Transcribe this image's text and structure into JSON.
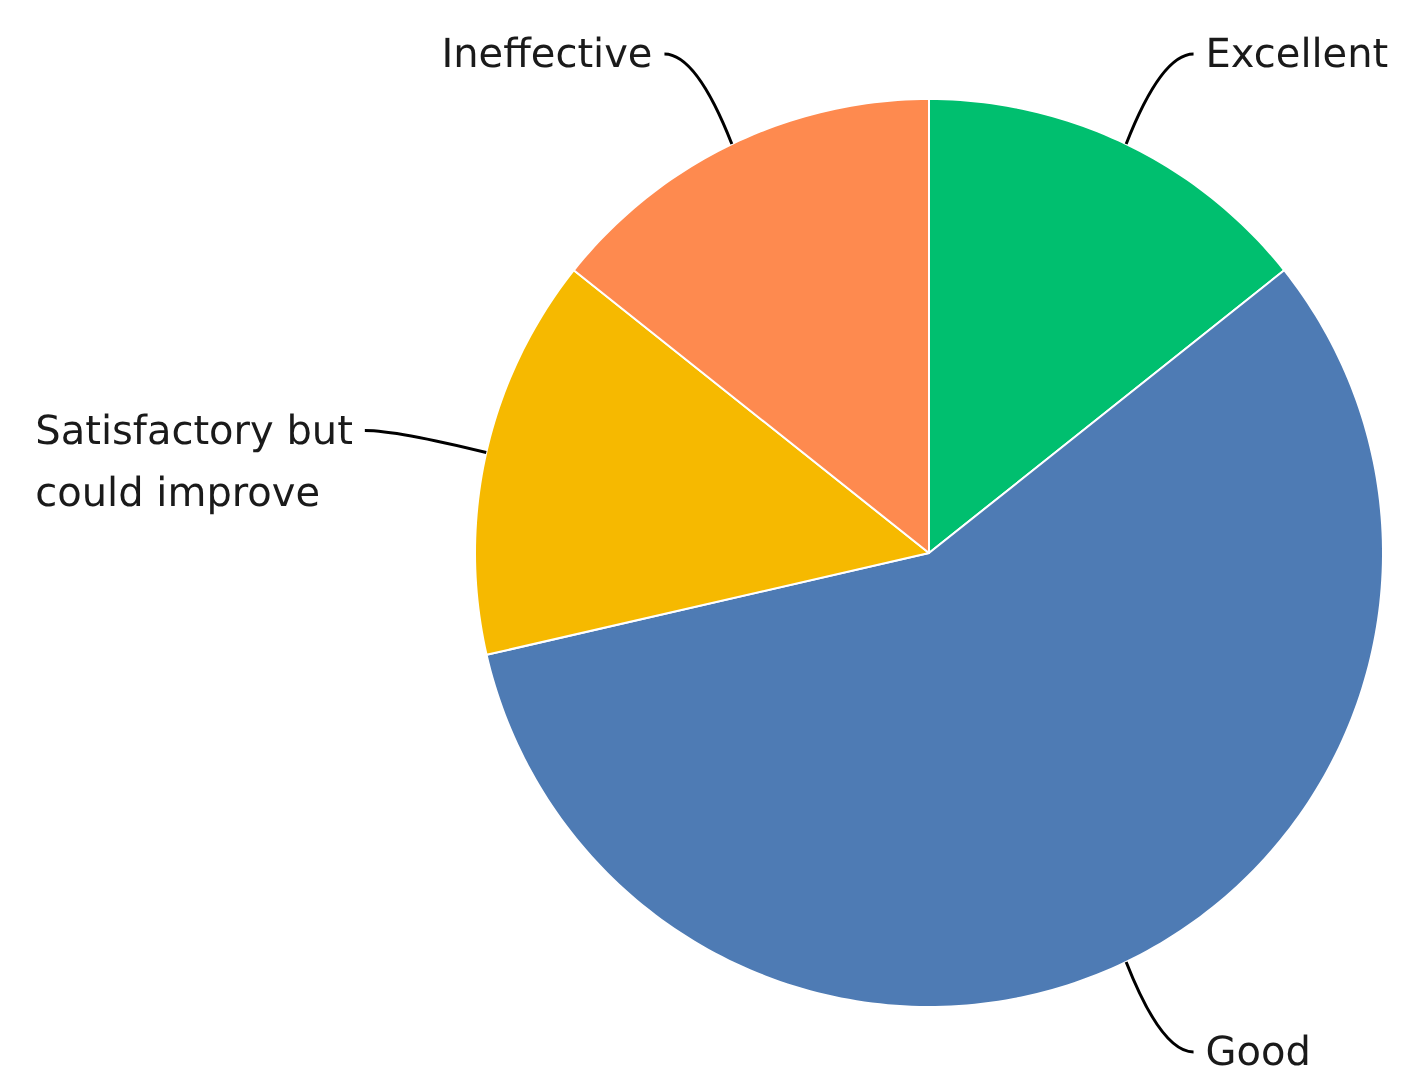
{
  "chart_data": {
    "type": "pie",
    "categories": [
      "Excellent",
      "Good",
      "Satisfactory but could improve",
      "Ineffective"
    ],
    "values": [
      14.3,
      57.1,
      14.3,
      14.3
    ],
    "colors": [
      "#00bf6f",
      "#4e7bb4",
      "#f6b900",
      "#fe8a4f"
    ]
  }
}
